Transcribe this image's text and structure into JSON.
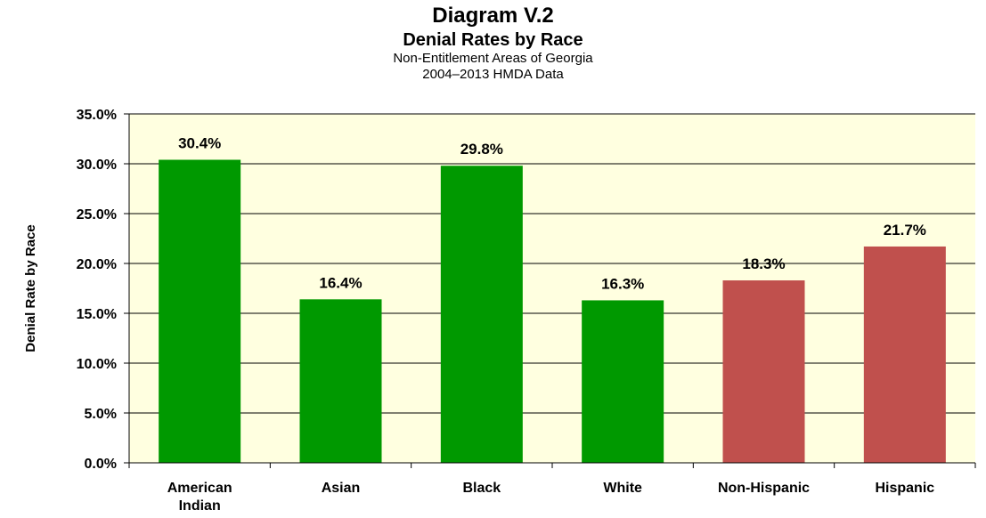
{
  "chart_data": {
    "type": "bar",
    "title": "Diagram V.2",
    "subtitle": "Denial Rates by Race",
    "subtitle2": "Non-Entitlement Areas of Georgia",
    "subtitle3": "2004–2013 HMDA Data",
    "xlabel": "",
    "ylabel": "Denial Rate by Race",
    "categories": [
      "American Indian",
      "Asian",
      "Black",
      "White",
      "Non-Hispanic",
      "Hispanic"
    ],
    "category_lines": [
      [
        "American",
        "Indian"
      ],
      [
        "Asian"
      ],
      [
        "Black"
      ],
      [
        "White"
      ],
      [
        "Non-Hispanic"
      ],
      [
        "Hispanic"
      ]
    ],
    "values": [
      30.4,
      16.4,
      29.8,
      16.3,
      18.3,
      21.7
    ],
    "value_labels": [
      "30.4%",
      "16.4%",
      "29.8%",
      "16.3%",
      "18.3%",
      "21.7%"
    ],
    "bar_colors": [
      "#009900",
      "#009900",
      "#009900",
      "#009900",
      "#C0504D",
      "#C0504D"
    ],
    "ylim": [
      0,
      35
    ],
    "yticks": [
      0,
      5,
      10,
      15,
      20,
      25,
      30,
      35
    ],
    "ytick_labels": [
      "0.0%",
      "5.0%",
      "10.0%",
      "15.0%",
      "20.0%",
      "25.0%",
      "30.0%",
      "35.0%"
    ],
    "grid": true,
    "plot_background": "#FFFFE0",
    "legend": "none"
  }
}
